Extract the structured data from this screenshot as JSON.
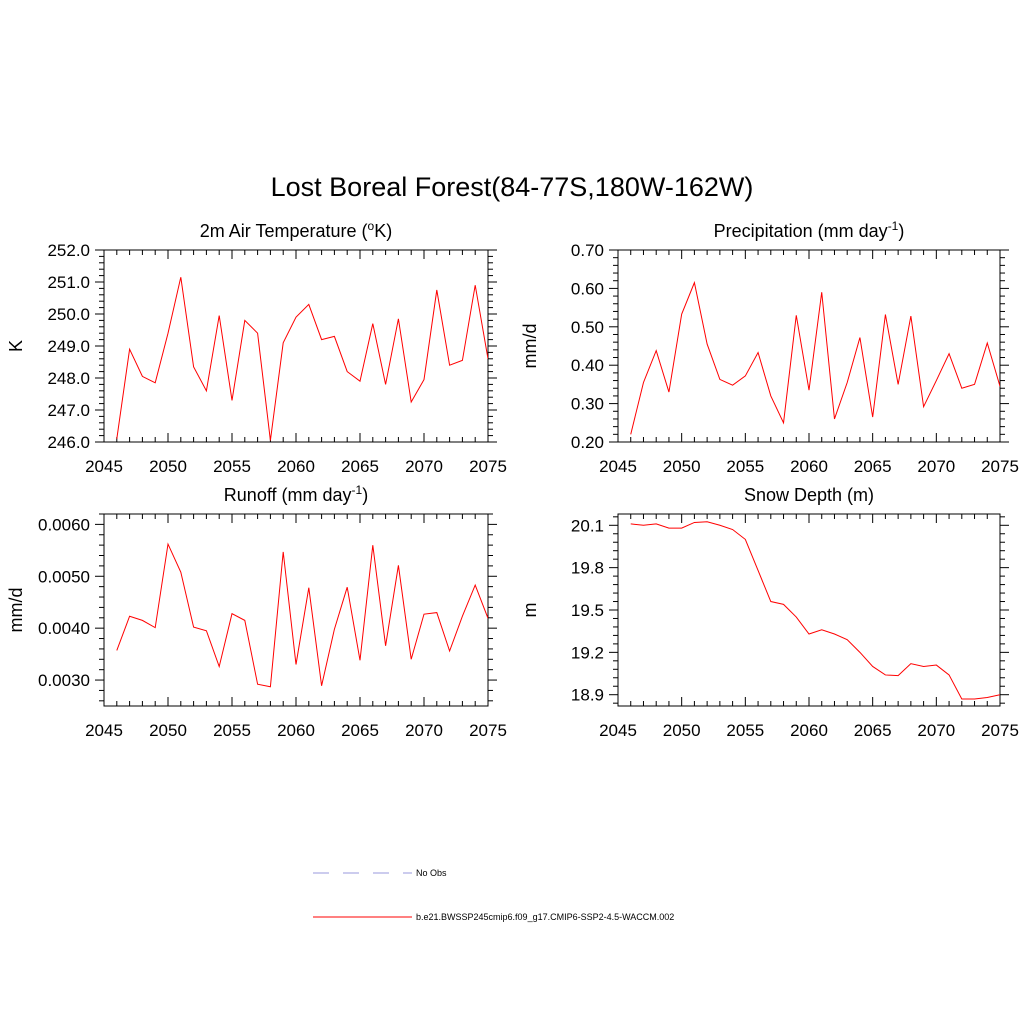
{
  "title": "Lost Boreal Forest(84-77S,180W-162W)",
  "chart_data": [
    {
      "type": "line",
      "title": "2m Air Temperature (",
      "title_sup": "o",
      "title_after_sup": "K)",
      "ylabel": "K",
      "xlim": [
        2045,
        2075
      ],
      "ylim": [
        246.0,
        252.0
      ],
      "xticks": [
        2045,
        2050,
        2055,
        2060,
        2065,
        2070,
        2075
      ],
      "yticks": [
        246.0,
        247.0,
        248.0,
        249.0,
        250.0,
        251.0,
        252.0
      ],
      "ytick_labels": [
        "246.0",
        "247.0",
        "248.0",
        "249.0",
        "250.0",
        "251.0",
        "252.0"
      ],
      "series": [
        {
          "color": "#ff0000",
          "x": [
            2046,
            2047,
            2048,
            2049,
            2050,
            2051,
            2052,
            2053,
            2054,
            2055,
            2056,
            2057,
            2058,
            2059,
            2060,
            2061,
            2062,
            2063,
            2064,
            2065,
            2066,
            2067,
            2068,
            2069,
            2070,
            2071,
            2072,
            2073,
            2074,
            2075
          ],
          "values": [
            246.1,
            248.9,
            248.05,
            247.85,
            249.4,
            251.15,
            248.35,
            247.6,
            249.95,
            247.3,
            249.8,
            249.4,
            246.05,
            249.1,
            249.9,
            250.3,
            249.2,
            249.3,
            248.2,
            247.9,
            249.7,
            247.8,
            249.85,
            247.25,
            247.95,
            250.75,
            248.4,
            248.55,
            250.9,
            248.6
          ]
        }
      ]
    },
    {
      "type": "line",
      "title": "Precipitation (mm day",
      "title_sup": "-1",
      "title_after_sup": ")",
      "ylabel": "mm/d",
      "xlim": [
        2045,
        2075
      ],
      "ylim": [
        0.2,
        0.7
      ],
      "xticks": [
        2045,
        2050,
        2055,
        2060,
        2065,
        2070,
        2075
      ],
      "yticks": [
        0.2,
        0.3,
        0.4,
        0.5,
        0.6,
        0.7
      ],
      "ytick_labels": [
        "0.20",
        "0.30",
        "0.40",
        "0.50",
        "0.60",
        "0.70"
      ],
      "series": [
        {
          "color": "#ff0000",
          "x": [
            2046,
            2047,
            2048,
            2049,
            2050,
            2051,
            2052,
            2053,
            2054,
            2055,
            2056,
            2057,
            2058,
            2059,
            2060,
            2061,
            2062,
            2063,
            2064,
            2065,
            2066,
            2067,
            2068,
            2069,
            2070,
            2071,
            2072,
            2073,
            2074,
            2075
          ],
          "values": [
            0.22,
            0.355,
            0.438,
            0.33,
            0.533,
            0.615,
            0.455,
            0.363,
            0.348,
            0.372,
            0.433,
            0.32,
            0.25,
            0.53,
            0.335,
            0.59,
            0.26,
            0.355,
            0.472,
            0.265,
            0.532,
            0.35,
            0.528,
            0.292,
            0.36,
            0.43,
            0.34,
            0.35,
            0.458,
            0.345
          ]
        }
      ]
    },
    {
      "type": "line",
      "title": "Runoff (mm day",
      "title_sup": "-1",
      "title_after_sup": ")",
      "ylabel": "mm/d",
      "xlim": [
        2045,
        2075
      ],
      "ylim": [
        0.0025,
        0.0062
      ],
      "xticks": [
        2045,
        2050,
        2055,
        2060,
        2065,
        2070,
        2075
      ],
      "yticks": [
        0.003,
        0.004,
        0.005,
        0.006
      ],
      "ytick_labels": [
        "0.0030",
        "0.0040",
        "0.0050",
        "0.0060"
      ],
      "series": [
        {
          "color": "#ff0000",
          "x": [
            2046,
            2047,
            2048,
            2049,
            2050,
            2051,
            2052,
            2053,
            2054,
            2055,
            2056,
            2057,
            2058,
            2059,
            2060,
            2061,
            2062,
            2063,
            2064,
            2065,
            2066,
            2067,
            2068,
            2069,
            2070,
            2071,
            2072,
            2073,
            2074,
            2075
          ],
          "values": [
            0.00357,
            0.00423,
            0.00415,
            0.00401,
            0.00562,
            0.00508,
            0.00402,
            0.00395,
            0.00326,
            0.00428,
            0.00415,
            0.00292,
            0.00287,
            0.00547,
            0.0033,
            0.00478,
            0.00289,
            0.00398,
            0.00479,
            0.00338,
            0.0056,
            0.00366,
            0.00521,
            0.0034,
            0.00427,
            0.0043,
            0.00356,
            0.00423,
            0.00483,
            0.00419
          ]
        }
      ]
    },
    {
      "type": "line",
      "title": "Snow Depth (m)",
      "title_sup": "",
      "title_after_sup": "",
      "ylabel": "m",
      "xlim": [
        2045,
        2075
      ],
      "ylim": [
        18.82,
        20.18
      ],
      "xticks": [
        2045,
        2050,
        2055,
        2060,
        2065,
        2070,
        2075
      ],
      "yticks": [
        18.9,
        19.2,
        19.5,
        19.8,
        20.1
      ],
      "ytick_labels": [
        "18.9",
        "19.2",
        "19.5",
        "19.8",
        "20.1"
      ],
      "series": [
        {
          "color": "#ff0000",
          "x": [
            2046,
            2047,
            2048,
            2049,
            2050,
            2051,
            2052,
            2053,
            2054,
            2055,
            2056,
            2057,
            2058,
            2059,
            2060,
            2061,
            2062,
            2063,
            2064,
            2065,
            2066,
            2067,
            2068,
            2069,
            2070,
            2071,
            2072,
            2073,
            2074,
            2075
          ],
          "values": [
            20.11,
            20.1,
            20.11,
            20.08,
            20.08,
            20.12,
            20.125,
            20.1,
            20.07,
            20.0,
            19.78,
            19.56,
            19.54,
            19.45,
            19.33,
            19.36,
            19.33,
            19.29,
            19.2,
            19.1,
            19.04,
            19.035,
            19.12,
            19.1,
            19.11,
            19.04,
            18.87,
            18.87,
            18.88,
            18.9
          ]
        }
      ]
    }
  ],
  "legend": {
    "entries": [
      {
        "label": "No Obs",
        "color": "#9999dd",
        "dash": "dashed"
      },
      {
        "label": "b.e21.BWSSP245cmip6.f09_g17.CMIP6-SSP2-4.5-WACCM.002",
        "color": "#ff0000",
        "dash": "solid"
      }
    ]
  }
}
